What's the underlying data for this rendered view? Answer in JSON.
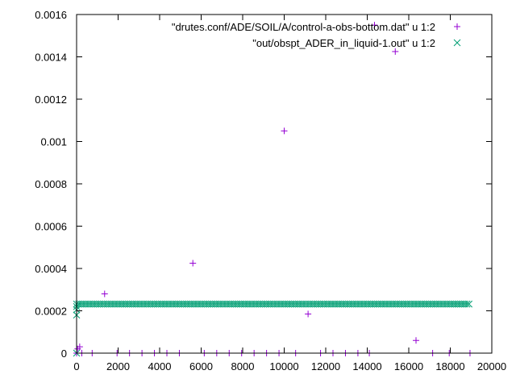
{
  "chart_data": {
    "type": "scatter",
    "title": "",
    "xlabel": "",
    "ylabel": "",
    "xlim": [
      0,
      20000
    ],
    "ylim": [
      0,
      0.0016
    ],
    "x_ticks": [
      {
        "value": 0,
        "label": "0"
      },
      {
        "value": 2000,
        "label": "2000"
      },
      {
        "value": 4000,
        "label": "4000"
      },
      {
        "value": 6000,
        "label": "6000"
      },
      {
        "value": 8000,
        "label": "8000"
      },
      {
        "value": 10000,
        "label": "10000"
      },
      {
        "value": 12000,
        "label": "12000"
      },
      {
        "value": 14000,
        "label": "14000"
      },
      {
        "value": 16000,
        "label": "16000"
      },
      {
        "value": 18000,
        "label": "18000"
      },
      {
        "value": 20000,
        "label": "20000"
      }
    ],
    "y_ticks": [
      {
        "value": 0,
        "label": "0"
      },
      {
        "value": 0.0002,
        "label": "0.0002"
      },
      {
        "value": 0.0004,
        "label": "0.0004"
      },
      {
        "value": 0.0006,
        "label": "0.0006"
      },
      {
        "value": 0.0008,
        "label": "0.0008"
      },
      {
        "value": 0.001,
        "label": "0.001"
      },
      {
        "value": 0.0012,
        "label": "0.0012"
      },
      {
        "value": 0.0014,
        "label": "0.0014"
      },
      {
        "value": 0.0016,
        "label": "0.0016"
      }
    ],
    "grid": false,
    "legend_position": "top-right",
    "series": [
      {
        "name": "\"drutes.conf/ADE/SOIL/A/control-a-obs-bottom.dat\" u 1:2",
        "marker": "plus",
        "color": "#9400d3",
        "x": [
          0,
          50,
          150,
          250,
          750,
          1350,
          1950,
          2550,
          3150,
          3750,
          4350,
          4950,
          5600,
          6150,
          6750,
          7350,
          7950,
          8550,
          9150,
          9750,
          10000,
          10550,
          11150,
          11750,
          12350,
          12950,
          13550,
          14100,
          14350,
          15350,
          16350,
          17150,
          17950,
          18950
        ],
        "y": [
          0,
          2e-05,
          3e-05,
          0,
          0,
          0.00028,
          0,
          0,
          0,
          0,
          0,
          0,
          0.000425,
          0,
          0,
          0,
          0,
          0,
          0,
          0,
          0.00105,
          0,
          0.000185,
          0,
          0,
          0,
          0,
          0,
          0.00155,
          0.001425,
          6e-05,
          0,
          0,
          0
        ]
      },
      {
        "name": "\"out/obspt_ADER_in_liquid-1.out\" u 1:2",
        "marker": "cross",
        "color": "#009e73",
        "x_start": 0,
        "x_end": 18950,
        "x_step": 100,
        "plateau_value": 0.000232,
        "initial_points": [
          {
            "x": 0,
            "y": 0
          },
          {
            "x": 0,
            "y": 0.00018
          },
          {
            "x": 0,
            "y": 0.000205
          },
          {
            "x": 0,
            "y": 0.00022
          }
        ]
      }
    ]
  }
}
